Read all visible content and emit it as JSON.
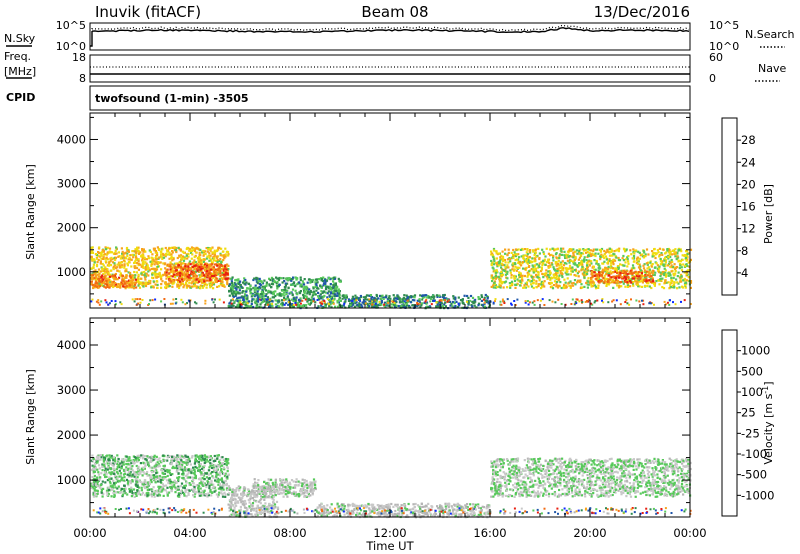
{
  "header": {
    "station": "Inuvik (fitACF)",
    "beam": "Beam 08",
    "date": "13/Dec/2016"
  },
  "noise_panel": {
    "left_label": "N.Sky",
    "right_label": "N.Search",
    "left_ticks": [
      "10^5",
      "10^0"
    ],
    "right_ticks": [
      "10^5",
      "10^0"
    ]
  },
  "freq_panel": {
    "left_label": "Freq.",
    "left_unit": "[MHz]",
    "right_label": "Nave",
    "left_ticks": [
      "18",
      "8"
    ],
    "right_ticks": [
      "60",
      "0"
    ]
  },
  "cpid_panel": {
    "label": "CPID",
    "text": "twofsound (1-min) -3505"
  },
  "colors": {
    "power": [
      "#0b2bff",
      "#1f56a8",
      "#2e8b4e",
      "#57c95a",
      "#f0dc10",
      "#f7a31c",
      "#f26a12",
      "#e81e10"
    ],
    "velocity": [
      "#e81e10",
      "#f26a12",
      "#f7a31c",
      "#b5b5b5",
      "#c8c8c8",
      "#57c95a",
      "#2e8b4e",
      "#1f56a8",
      "#0b2bff"
    ]
  },
  "chart_data": [
    {
      "type": "heatmap",
      "xlabel": "Time UT",
      "ylabel": "Slant Range [km]",
      "x_ticks": [
        "00:00",
        "04:00",
        "08:00",
        "12:00",
        "16:00",
        "20:00",
        "00:00"
      ],
      "xlim_hours": [
        0,
        24
      ],
      "ylim_km": [
        180,
        4600
      ],
      "y_ticks": [
        1000,
        2000,
        3000,
        4000
      ],
      "colorbar": {
        "label": "Power [dB]",
        "ticks": [
          "4",
          "8",
          "12",
          "16",
          "20",
          "24",
          "28"
        ],
        "range": [
          0,
          32
        ]
      },
      "regions": [
        {
          "t": [
            0.0,
            5.5
          ],
          "r": [
            650,
            1580
          ],
          "level": 20
        },
        {
          "t": [
            3.0,
            5.5
          ],
          "r": [
            800,
            1200
          ],
          "level": 28
        },
        {
          "t": [
            0.0,
            1.8
          ],
          "r": [
            650,
            950
          ],
          "level": 26
        },
        {
          "t": [
            5.5,
            10.0
          ],
          "r": [
            200,
            900
          ],
          "level": 10
        },
        {
          "t": [
            10.0,
            16.0
          ],
          "r": [
            200,
            500
          ],
          "level": 8
        },
        {
          "t": [
            16.0,
            24.0
          ],
          "r": [
            650,
            1550
          ],
          "level": 18
        },
        {
          "t": [
            20.0,
            22.5
          ],
          "r": [
            780,
            1050
          ],
          "level": 28
        }
      ]
    },
    {
      "type": "heatmap",
      "xlabel": "Time UT",
      "ylabel": "Slant Range [km]",
      "x_ticks": [
        "00:00",
        "04:00",
        "08:00",
        "12:00",
        "16:00",
        "20:00",
        "00:00"
      ],
      "xlim_hours": [
        0,
        24
      ],
      "ylim_km": [
        180,
        4600
      ],
      "y_ticks": [
        1000,
        2000,
        3000,
        4000
      ],
      "colorbar": {
        "label": "Velocity [m s^-1]",
        "ticks": [
          "1000",
          "500",
          "100",
          "25",
          "-25",
          "-100",
          "-500",
          "-1000"
        ],
        "range": [
          -1000,
          1000
        ]
      },
      "regions": [
        {
          "t": [
            0.0,
            5.5
          ],
          "r": [
            650,
            1580
          ],
          "level": -200
        },
        {
          "t": [
            5.5,
            7.5
          ],
          "r": [
            200,
            900
          ],
          "level": 60
        },
        {
          "t": [
            6.5,
            9.0
          ],
          "r": [
            650,
            1050
          ],
          "level": 0
        },
        {
          "t": [
            9.0,
            16.0
          ],
          "r": [
            200,
            500
          ],
          "level": 80
        },
        {
          "t": [
            16.0,
            24.0
          ],
          "r": [
            650,
            1500
          ],
          "level": -100
        }
      ]
    }
  ]
}
